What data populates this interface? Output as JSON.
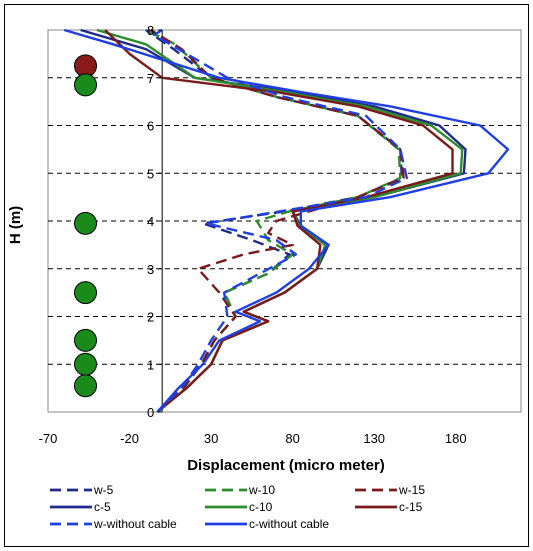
{
  "chart_data": {
    "type": "line",
    "xlabel": "Displacement (micro meter)",
    "ylabel": "H  (m)",
    "xlim": [
      -70,
      220
    ],
    "ylim": [
      0,
      8
    ],
    "x_ticks": [
      -70,
      -20,
      30,
      80,
      130,
      180
    ],
    "y_ticks": [
      0,
      1,
      2,
      3,
      4,
      5,
      6,
      7,
      8
    ],
    "grid": "horizontal-dashed",
    "legend_position": "bottom",
    "series": [
      {
        "name": "w-5",
        "color": "#1f2a8a",
        "dash": "dashed",
        "points": [
          [
            -3,
            0
          ],
          [
            13,
            0.5
          ],
          [
            24,
            1
          ],
          [
            32,
            1.5
          ],
          [
            45,
            2
          ],
          [
            38,
            2.5
          ],
          [
            65,
            2.9
          ],
          [
            78,
            3.3
          ],
          [
            55,
            3.6
          ],
          [
            25,
            3.95
          ],
          [
            75,
            4.2
          ],
          [
            120,
            4.5
          ],
          [
            147,
            4.9
          ],
          [
            146,
            5.5
          ],
          [
            120,
            6.2
          ],
          [
            70,
            6.6
          ],
          [
            30,
            7.0
          ],
          [
            7,
            7.6
          ],
          [
            -10,
            8
          ]
        ]
      },
      {
        "name": "w-10",
        "color": "#2e8b2e",
        "dash": "dashed",
        "points": [
          [
            -3,
            0
          ],
          [
            13,
            0.5
          ],
          [
            24,
            1
          ],
          [
            32,
            1.5
          ],
          [
            45,
            2
          ],
          [
            38,
            2.5
          ],
          [
            65,
            2.9
          ],
          [
            80,
            3.3
          ],
          [
            65,
            3.6
          ],
          [
            58,
            4
          ],
          [
            78,
            4.2
          ],
          [
            120,
            4.5
          ],
          [
            146,
            4.9
          ],
          [
            145,
            5.5
          ],
          [
            120,
            6.2
          ],
          [
            70,
            6.6
          ],
          [
            30,
            7.0
          ],
          [
            8,
            7.7
          ],
          [
            -10,
            8
          ]
        ]
      },
      {
        "name": "w-15",
        "color": "#7a1a1a",
        "dash": "dashed",
        "points": [
          [
            -3,
            0
          ],
          [
            13,
            0.5
          ],
          [
            24,
            1
          ],
          [
            32,
            1.5
          ],
          [
            45,
            2
          ],
          [
            35,
            2.5
          ],
          [
            22,
            3
          ],
          [
            50,
            3.3
          ],
          [
            80,
            3.5
          ],
          [
            65,
            3.75
          ],
          [
            70,
            4
          ],
          [
            120,
            4.5
          ],
          [
            148,
            4.9
          ],
          [
            146,
            5.5
          ],
          [
            120,
            6.2
          ],
          [
            70,
            6.6
          ],
          [
            30,
            7.0
          ],
          [
            12,
            7.6
          ],
          [
            -7,
            8
          ]
        ]
      },
      {
        "name": "c-5",
        "color": "#1f2a8a",
        "dash": "solid",
        "points": [
          [
            -3,
            0
          ],
          [
            15,
            0.5
          ],
          [
            30,
            1
          ],
          [
            37,
            1.5
          ],
          [
            65,
            1.9
          ],
          [
            50,
            2.1
          ],
          [
            75,
            2.5
          ],
          [
            95,
            3
          ],
          [
            102,
            3.5
          ],
          [
            85,
            3.9
          ],
          [
            80,
            4.2
          ],
          [
            130,
            4.5
          ],
          [
            185,
            5.0
          ],
          [
            186,
            5.5
          ],
          [
            170,
            6.0
          ],
          [
            130,
            6.4
          ],
          [
            80,
            6.7
          ],
          [
            20,
            7.0
          ],
          [
            -10,
            7.6
          ],
          [
            -50,
            8
          ]
        ]
      },
      {
        "name": "c-10",
        "color": "#2e8b2e",
        "dash": "solid",
        "points": [
          [
            -3,
            0
          ],
          [
            15,
            0.5
          ],
          [
            30,
            1
          ],
          [
            37,
            1.5
          ],
          [
            65,
            1.9
          ],
          [
            50,
            2.1
          ],
          [
            75,
            2.5
          ],
          [
            95,
            3
          ],
          [
            100,
            3.5
          ],
          [
            84,
            3.9
          ],
          [
            80,
            4.2
          ],
          [
            130,
            4.5
          ],
          [
            183,
            5.0
          ],
          [
            184,
            5.5
          ],
          [
            165,
            6.0
          ],
          [
            125,
            6.4
          ],
          [
            75,
            6.7
          ],
          [
            20,
            7.0
          ],
          [
            -10,
            7.7
          ],
          [
            -40,
            8
          ]
        ]
      },
      {
        "name": "c-15",
        "color": "#7a1a1a",
        "dash": "solid",
        "points": [
          [
            -3,
            0
          ],
          [
            15,
            0.5
          ],
          [
            30,
            1
          ],
          [
            37,
            1.5
          ],
          [
            65,
            1.9
          ],
          [
            50,
            2.1
          ],
          [
            75,
            2.5
          ],
          [
            95,
            3
          ],
          [
            97,
            3.5
          ],
          [
            83,
            3.9
          ],
          [
            80,
            4.2
          ],
          [
            125,
            4.5
          ],
          [
            178,
            5.0
          ],
          [
            178,
            5.5
          ],
          [
            160,
            6.0
          ],
          [
            120,
            6.4
          ],
          [
            70,
            6.7
          ],
          [
            0,
            7.0
          ],
          [
            -20,
            7.5
          ],
          [
            -35,
            8
          ]
        ]
      },
      {
        "name": "w-without cable",
        "color": "#1f3fe0",
        "dash": "dashed",
        "points": [
          [
            -3,
            0
          ],
          [
            12,
            0.5
          ],
          [
            22,
            1
          ],
          [
            30,
            1.5
          ],
          [
            40,
            2
          ],
          [
            38,
            2.5
          ],
          [
            60,
            2.9
          ],
          [
            82,
            3.3
          ],
          [
            70,
            3.6
          ],
          [
            27,
            3.95
          ],
          [
            72,
            4.2
          ],
          [
            125,
            4.5
          ],
          [
            150,
            4.9
          ],
          [
            146,
            5.5
          ],
          [
            125,
            6.2
          ],
          [
            75,
            6.6
          ],
          [
            40,
            7.0
          ],
          [
            20,
            7.4
          ],
          [
            -5,
            7.9
          ],
          [
            0,
            8
          ]
        ]
      },
      {
        "name": "c-without cable",
        "color": "#1f3fe0",
        "dash": "solid",
        "points": [
          [
            -3,
            0
          ],
          [
            10,
            0.5
          ],
          [
            25,
            1
          ],
          [
            35,
            1.5
          ],
          [
            60,
            1.9
          ],
          [
            45,
            2.1
          ],
          [
            70,
            2.5
          ],
          [
            90,
            3
          ],
          [
            102,
            3.5
          ],
          [
            85,
            3.9
          ],
          [
            85,
            4.2
          ],
          [
            140,
            4.5
          ],
          [
            200,
            5.0
          ],
          [
            212,
            5.5
          ],
          [
            195,
            6.0
          ],
          [
            140,
            6.4
          ],
          [
            85,
            6.7
          ],
          [
            35,
            7.0
          ],
          [
            -30,
            7.7
          ],
          [
            -60,
            8
          ]
        ]
      }
    ],
    "markers": [
      {
        "color": "#8b1a1a",
        "x": -47,
        "y": 7.25
      },
      {
        "color": "#1a8b1a",
        "x": -47,
        "y": 6.85
      },
      {
        "color": "#1a8b1a",
        "x": -47,
        "y": 3.95
      },
      {
        "color": "#1a8b1a",
        "x": -47,
        "y": 2.5
      },
      {
        "color": "#1a8b1a",
        "x": -47,
        "y": 1.5
      },
      {
        "color": "#1a8b1a",
        "x": -47,
        "y": 1.0
      },
      {
        "color": "#1a8b1a",
        "x": -47,
        "y": 0.55
      }
    ],
    "legend_rows": [
      [
        "w-5",
        "w-10",
        "w-15"
      ],
      [
        "c-5",
        "c-10",
        "c-15"
      ],
      [
        "w-without cable",
        "c-without cable"
      ]
    ]
  }
}
